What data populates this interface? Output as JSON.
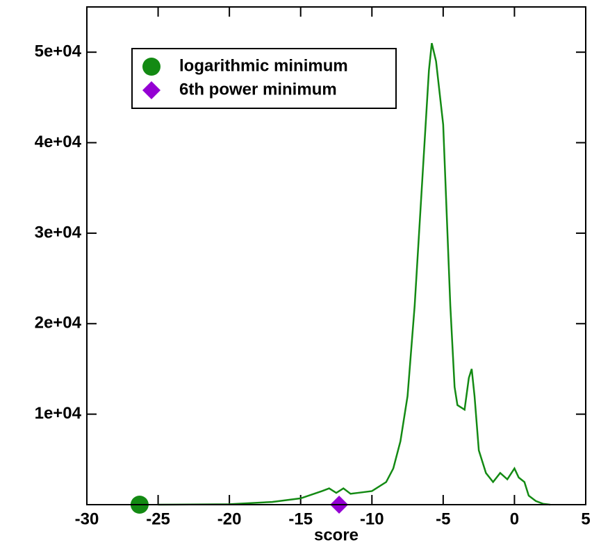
{
  "chart_data": {
    "type": "line",
    "xlabel": "score",
    "xlim": [
      -30,
      5
    ],
    "xticks": [
      -30,
      -25,
      -20,
      -15,
      -10,
      -5,
      0,
      5
    ],
    "ylim": [
      0,
      55000
    ],
    "yticks": [
      {
        "value": 10000,
        "label": "1e+04"
      },
      {
        "value": 20000,
        "label": "2e+04"
      },
      {
        "value": 30000,
        "label": "3e+04"
      },
      {
        "value": 40000,
        "label": "4e+04"
      },
      {
        "value": 50000,
        "label": "5e+04"
      }
    ],
    "legend": "upper left",
    "series": [
      {
        "kind": "line",
        "color": "#138a13",
        "x": [
          -25,
          -20,
          -17,
          -15,
          -13.5,
          -13,
          -12.5,
          -12,
          -11.5,
          -11,
          -10,
          -9,
          -8.5,
          -8,
          -7.5,
          -7,
          -6.5,
          -6,
          -5.8,
          -5.5,
          -5,
          -4.7,
          -4.5,
          -4.2,
          -4,
          -3.5,
          -3.2,
          -3,
          -2.8,
          -2.5,
          -2,
          -1.5,
          -1,
          -0.5,
          0,
          0.3,
          0.7,
          1,
          1.5,
          2,
          2.5
        ],
        "values": [
          0,
          50,
          300,
          700,
          1500,
          1800,
          1300,
          1800,
          1200,
          1300,
          1500,
          2500,
          4000,
          7000,
          12000,
          22000,
          35000,
          48000,
          51000,
          49000,
          42000,
          30000,
          22000,
          13000,
          11000,
          10500,
          14000,
          15000,
          12000,
          6000,
          3500,
          2500,
          3500,
          2800,
          4000,
          3000,
          2500,
          1000,
          400,
          100,
          0
        ]
      },
      {
        "kind": "circle",
        "name": "logarithmic minimum",
        "color": "#138a13",
        "x": [
          -26.3
        ],
        "values": [
          0
        ]
      },
      {
        "kind": "diamond",
        "name": "6th power minimum",
        "color": "#9400d3",
        "x": [
          -12.3
        ],
        "values": [
          0
        ]
      }
    ]
  }
}
